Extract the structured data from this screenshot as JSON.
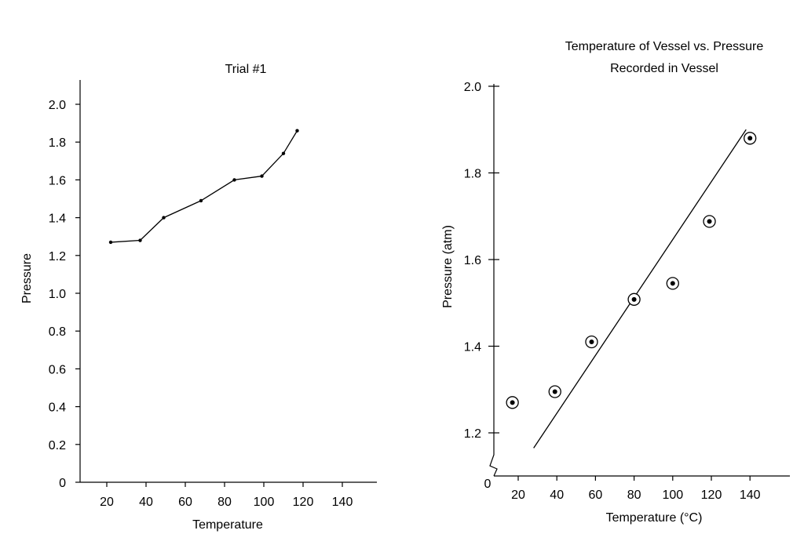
{
  "chart_data": [
    {
      "type": "line",
      "title": "Trial #1",
      "xlabel": "Temperature",
      "ylabel": "Pressure",
      "xlim": [
        5,
        150
      ],
      "ylim": [
        0,
        2.15
      ],
      "x_ticks": [
        "20",
        "40",
        "60",
        "80",
        "100",
        "120",
        "140"
      ],
      "y_ticks": [
        "0",
        "0.2",
        "0.4",
        "0.6",
        "0.8",
        "1.0",
        "1.2",
        "1.4",
        "1.6",
        "1.8",
        "2.0"
      ],
      "grid": false,
      "series": [
        {
          "x": [
            22,
            37,
            49,
            68,
            85,
            99,
            110,
            117
          ],
          "y": [
            1.27,
            1.28,
            1.4,
            1.49,
            1.6,
            1.62,
            1.74,
            1.86
          ]
        }
      ]
    },
    {
      "type": "scatter",
      "title": "Temperature of Vessel vs. Pressure Recorded in Vessel",
      "title_lines": [
        "Temperature of Vessel vs. Pressure",
        "Recorded in Vessel"
      ],
      "xlabel": "Temperature (°C)",
      "ylabel": "Pressure  (atm)",
      "xlim": [
        5,
        160
      ],
      "ylim": [
        1.1,
        2.0
      ],
      "y_axis_break": true,
      "x_ticks": [
        "20",
        "40",
        "60",
        "80",
        "100",
        "120",
        "140"
      ],
      "y_ticks": [
        "1.2",
        "1.4",
        "1.6",
        "1.8",
        "2.0"
      ],
      "origin_label": "0",
      "grid": false,
      "series": [
        {
          "x": [
            17,
            39,
            58,
            80,
            100,
            119,
            140
          ],
          "y": [
            1.27,
            1.295,
            1.41,
            1.508,
            1.545,
            1.688,
            1.88
          ]
        }
      ],
      "trendline": {
        "x": [
          28,
          138
        ],
        "y": [
          1.165,
          1.9
        ]
      }
    }
  ]
}
